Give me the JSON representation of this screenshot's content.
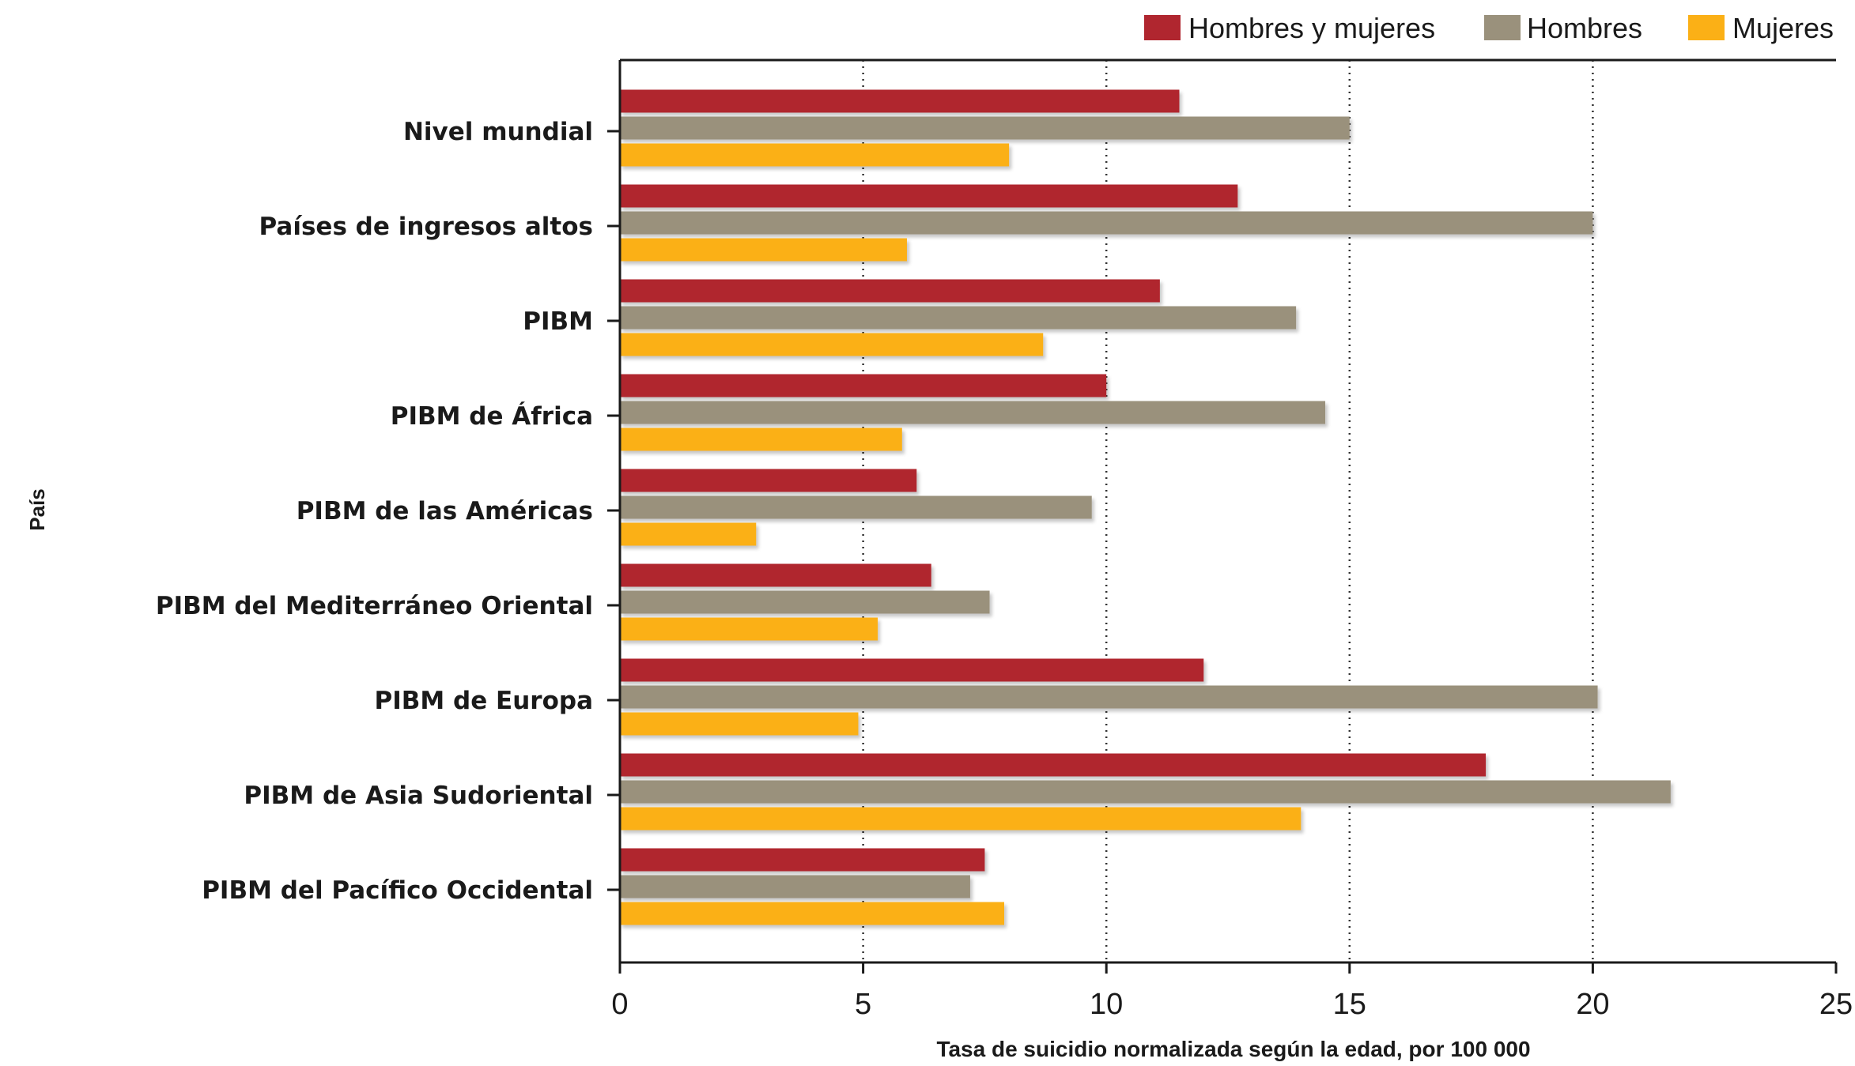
{
  "chart_data": {
    "type": "bar",
    "orientation": "horizontal",
    "categories": [
      "Nivel mundial",
      "Países de ingresos altos",
      "PIBM",
      "PIBM de África",
      "PIBM de las Américas",
      "PIBM del Mediterráneo Oriental",
      "PIBM de Europa",
      "PIBM de Asia Sudoriental",
      "PIBM del Pacífico Occidental"
    ],
    "series": [
      {
        "name": "Hombres y mujeres",
        "color": "#b0262f",
        "values": [
          11.5,
          12.7,
          11.1,
          10.0,
          6.1,
          6.4,
          12.0,
          17.8,
          7.5
        ]
      },
      {
        "name": "Hombres",
        "color": "#9a917c",
        "values": [
          15.0,
          20.0,
          13.9,
          14.5,
          9.7,
          7.6,
          20.1,
          21.6,
          7.2
        ]
      },
      {
        "name": "Mujeres",
        "color": "#fbb016",
        "values": [
          8.0,
          5.9,
          8.7,
          5.8,
          2.8,
          5.3,
          4.9,
          14.0,
          7.9
        ]
      }
    ],
    "xlabel": "Tasa de suicidio normalizada según la edad, por 100 000",
    "ylabel": "País",
    "xlim": [
      0,
      25
    ],
    "xticks": [
      "0",
      "5",
      "10",
      "15",
      "20",
      "25"
    ],
    "grid": "vertical dotted",
    "legend_position": "top-right"
  }
}
